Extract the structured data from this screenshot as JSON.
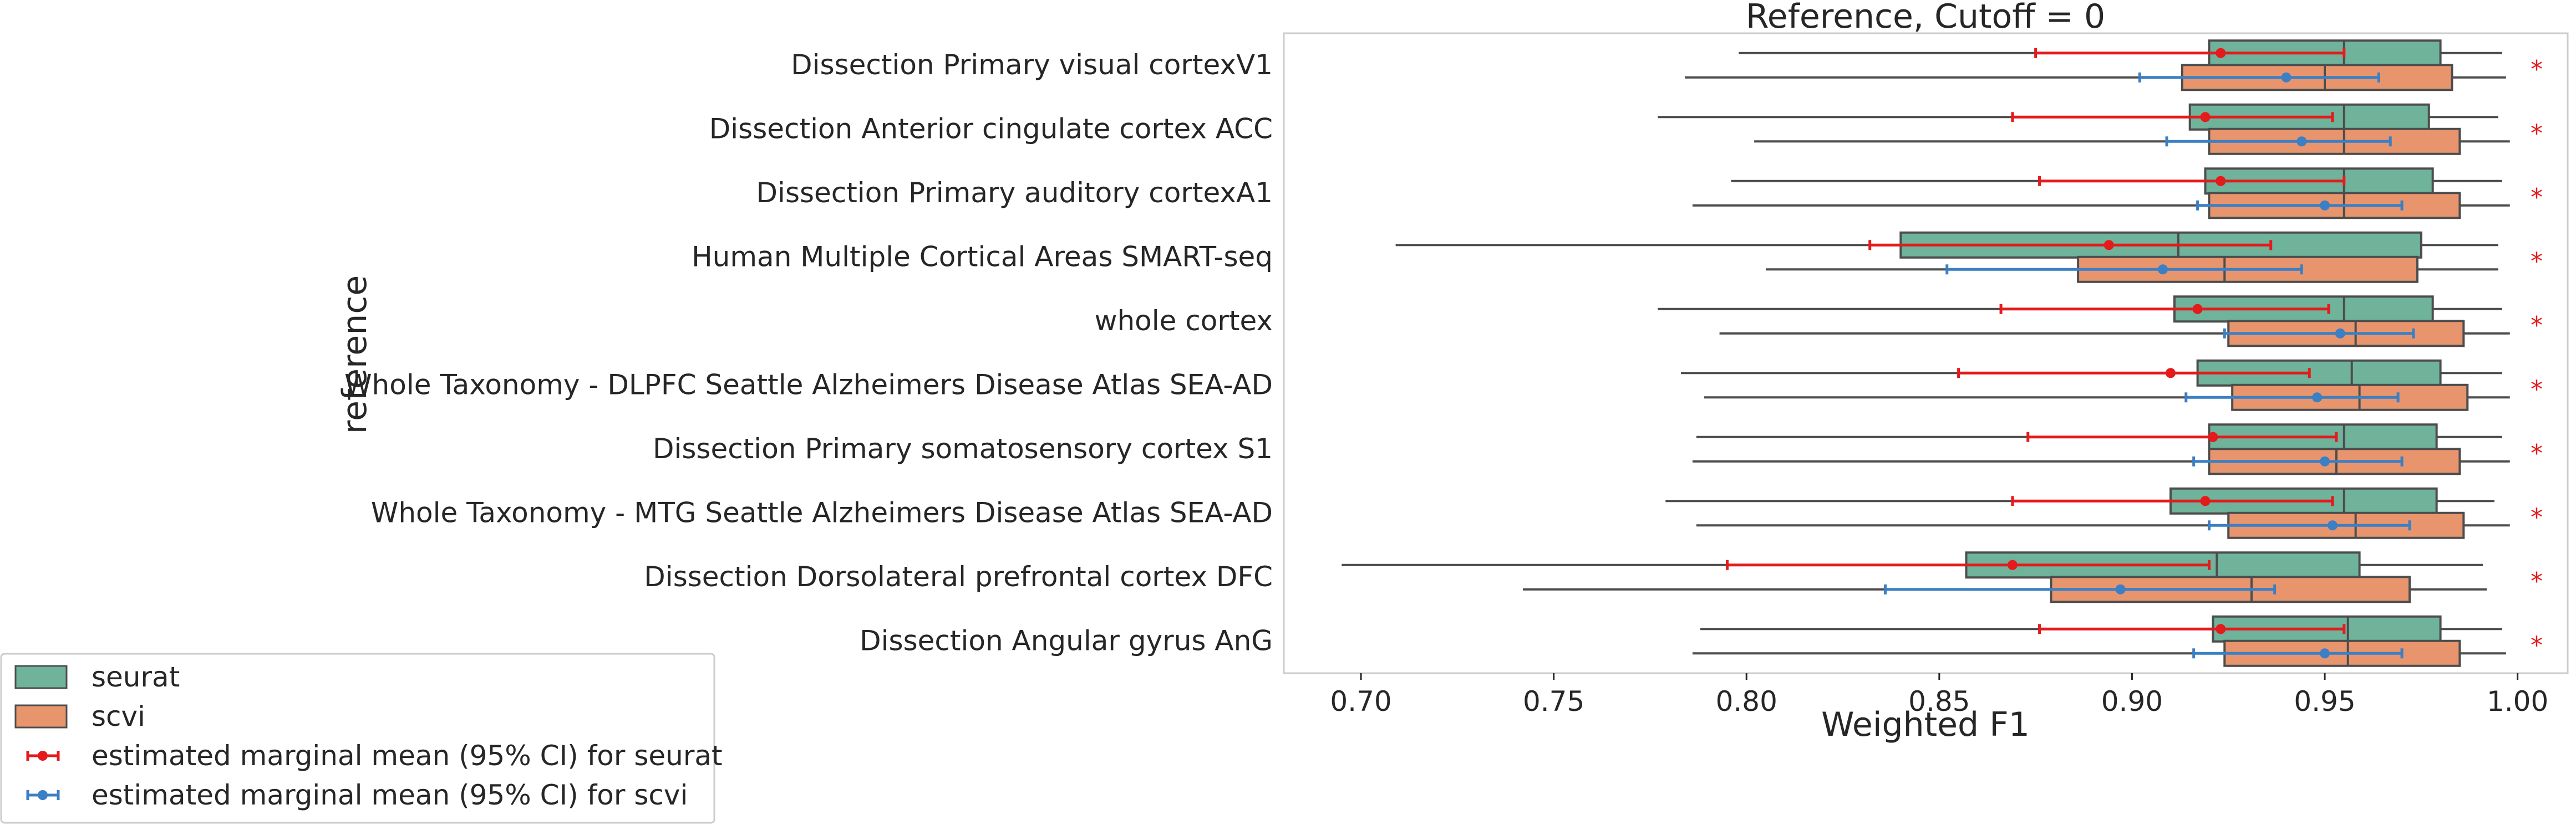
{
  "chart_data": {
    "type": "boxplot",
    "title": "Reference, Cutoff = 0",
    "xlabel": "Weighted F1",
    "ylabel": "reference",
    "xlim": [
      0.68,
      1.013
    ],
    "xticks": [
      "0.70",
      "0.75",
      "0.80",
      "0.85",
      "0.90",
      "0.95",
      "1.00"
    ],
    "xtick_values": [
      0.7,
      0.75,
      0.8,
      0.85,
      0.9,
      0.95,
      1.0
    ],
    "orientation": "horizontal",
    "grid": false,
    "legend_position": "outside-bottom-left",
    "colors": {
      "seurat": "#6fb39b",
      "scvi": "#e8956e",
      "seurat_emm": "#e41a1c",
      "scvi_emm": "#3b7fc4",
      "edge": "#4d4d4d"
    },
    "categories": [
      "Dissection Primary visual cortexV1",
      "Dissection Anterior cingulate cortex ACC",
      "Dissection Primary auditory cortexA1",
      "Human Multiple Cortical Areas SMART-seq",
      "whole cortex",
      "Whole Taxonomy - DLPFC Seattle Alzheimers Disease Atlas SEA-AD",
      "Dissection Primary somatosensory cortex S1",
      "Whole Taxonomy - MTG Seattle Alzheimers Disease Atlas SEA-AD",
      "Dissection Dorsolateral prefrontal cortex DFC",
      "Dissection Angular gyrus AnG"
    ],
    "significance": [
      "*",
      "*",
      "*",
      "*",
      "*",
      "*",
      "*",
      "*",
      "*",
      "*"
    ],
    "series": [
      {
        "name": "seurat",
        "boxes": [
          {
            "whislo": 0.798,
            "q1": 0.92,
            "med": 0.955,
            "q3": 0.98,
            "whishi": 0.996
          },
          {
            "whislo": 0.777,
            "q1": 0.915,
            "med": 0.955,
            "q3": 0.977,
            "whishi": 0.995
          },
          {
            "whislo": 0.796,
            "q1": 0.919,
            "med": 0.955,
            "q3": 0.978,
            "whishi": 0.996
          },
          {
            "whislo": 0.709,
            "q1": 0.84,
            "med": 0.912,
            "q3": 0.975,
            "whishi": 0.995
          },
          {
            "whislo": 0.777,
            "q1": 0.911,
            "med": 0.955,
            "q3": 0.978,
            "whishi": 0.996
          },
          {
            "whislo": 0.783,
            "q1": 0.917,
            "med": 0.957,
            "q3": 0.98,
            "whishi": 0.996
          },
          {
            "whislo": 0.787,
            "q1": 0.92,
            "med": 0.955,
            "q3": 0.979,
            "whishi": 0.996
          },
          {
            "whislo": 0.779,
            "q1": 0.91,
            "med": 0.955,
            "q3": 0.979,
            "whishi": 0.994
          },
          {
            "whislo": 0.695,
            "q1": 0.857,
            "med": 0.922,
            "q3": 0.959,
            "whishi": 0.991
          },
          {
            "whislo": 0.788,
            "q1": 0.921,
            "med": 0.956,
            "q3": 0.98,
            "whishi": 0.996
          }
        ]
      },
      {
        "name": "scvi",
        "boxes": [
          {
            "whislo": 0.784,
            "q1": 0.913,
            "med": 0.95,
            "q3": 0.983,
            "whishi": 0.997
          },
          {
            "whislo": 0.802,
            "q1": 0.92,
            "med": 0.955,
            "q3": 0.985,
            "whishi": 0.998
          },
          {
            "whislo": 0.786,
            "q1": 0.92,
            "med": 0.955,
            "q3": 0.985,
            "whishi": 0.998
          },
          {
            "whislo": 0.805,
            "q1": 0.886,
            "med": 0.924,
            "q3": 0.974,
            "whishi": 0.995
          },
          {
            "whislo": 0.793,
            "q1": 0.925,
            "med": 0.958,
            "q3": 0.986,
            "whishi": 0.998
          },
          {
            "whislo": 0.789,
            "q1": 0.926,
            "med": 0.959,
            "q3": 0.987,
            "whishi": 0.998
          },
          {
            "whislo": 0.786,
            "q1": 0.92,
            "med": 0.953,
            "q3": 0.985,
            "whishi": 0.998
          },
          {
            "whislo": 0.787,
            "q1": 0.925,
            "med": 0.958,
            "q3": 0.986,
            "whishi": 0.998
          },
          {
            "whislo": 0.742,
            "q1": 0.879,
            "med": 0.931,
            "q3": 0.972,
            "whishi": 0.992
          },
          {
            "whislo": 0.786,
            "q1": 0.924,
            "med": 0.956,
            "q3": 0.985,
            "whishi": 0.997
          }
        ]
      }
    ],
    "emm": [
      {
        "name": "estimated marginal mean (95% CI) for seurat",
        "points": [
          {
            "mean": 0.923,
            "lo": 0.875,
            "hi": 0.955
          },
          {
            "mean": 0.919,
            "lo": 0.869,
            "hi": 0.952
          },
          {
            "mean": 0.923,
            "lo": 0.876,
            "hi": 0.955
          },
          {
            "mean": 0.894,
            "lo": 0.832,
            "hi": 0.936
          },
          {
            "mean": 0.917,
            "lo": 0.866,
            "hi": 0.951
          },
          {
            "mean": 0.91,
            "lo": 0.855,
            "hi": 0.946
          },
          {
            "mean": 0.921,
            "lo": 0.873,
            "hi": 0.953
          },
          {
            "mean": 0.919,
            "lo": 0.869,
            "hi": 0.952
          },
          {
            "mean": 0.869,
            "lo": 0.795,
            "hi": 0.92
          },
          {
            "mean": 0.923,
            "lo": 0.876,
            "hi": 0.955
          }
        ]
      },
      {
        "name": "estimated marginal mean (95% CI) for scvi",
        "points": [
          {
            "mean": 0.94,
            "lo": 0.902,
            "hi": 0.964
          },
          {
            "mean": 0.944,
            "lo": 0.909,
            "hi": 0.967
          },
          {
            "mean": 0.95,
            "lo": 0.917,
            "hi": 0.97
          },
          {
            "mean": 0.908,
            "lo": 0.852,
            "hi": 0.944
          },
          {
            "mean": 0.954,
            "lo": 0.924,
            "hi": 0.973
          },
          {
            "mean": 0.948,
            "lo": 0.914,
            "hi": 0.969
          },
          {
            "mean": 0.95,
            "lo": 0.916,
            "hi": 0.97
          },
          {
            "mean": 0.952,
            "lo": 0.92,
            "hi": 0.972
          },
          {
            "mean": 0.897,
            "lo": 0.836,
            "hi": 0.937
          },
          {
            "mean": 0.95,
            "lo": 0.916,
            "hi": 0.97
          }
        ]
      }
    ]
  }
}
